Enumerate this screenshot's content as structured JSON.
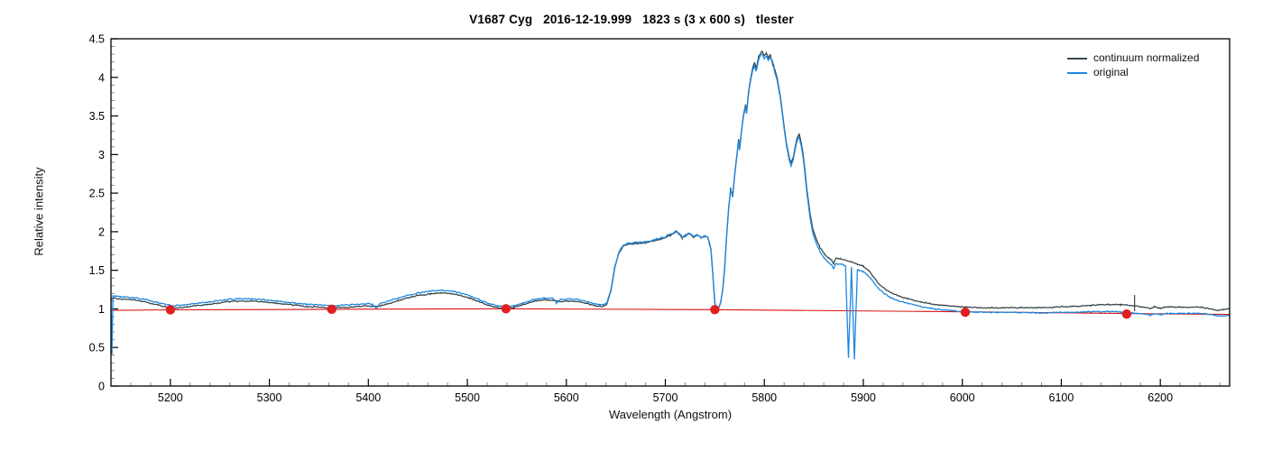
{
  "title": "V1687 Cyg   2016-12-19.999   1823 s (3 x 600 s)   tlester",
  "legend": {
    "items": [
      {
        "label": "continuum normalized",
        "color": "#37474b"
      },
      {
        "label": "original",
        "color": "#1e87e0"
      }
    ]
  },
  "colors": {
    "continuum_normalized": "#37474b",
    "original": "#1e87e0",
    "continuum_fit_line": "#dd1111",
    "continuum_fit_points": "#e02020",
    "axis": "#000000",
    "minor_tick": "#888888"
  },
  "chart_data": {
    "type": "line",
    "title": "V1687 Cyg   2016-12-19.999   1823 s (3 x 600 s)   tlester",
    "xlabel": "Wavelength (Angstrom)",
    "ylabel": "Relative intensity",
    "xlim": [
      5140,
      6270
    ],
    "ylim": [
      0,
      4.5
    ],
    "x_ticks": [
      5200,
      5300,
      5400,
      5500,
      5600,
      5700,
      5800,
      5900,
      6000,
      6100,
      6200
    ],
    "x_minor_step": 20,
    "y_ticks": [
      0,
      0.5,
      1,
      1.5,
      2,
      2.5,
      3,
      3.5,
      4,
      4.5
    ],
    "y_minor_step": 0.1,
    "grid": false,
    "legend_position": "top-right",
    "series": [
      {
        "name": "original",
        "color": "#1e87e0",
        "keypoints": [
          [
            5140,
            1.16
          ],
          [
            5141,
            0.42,
            1
          ],
          [
            5142,
            1.17
          ],
          [
            5150,
            1.16
          ],
          [
            5162,
            1.15
          ],
          [
            5175,
            1.12
          ],
          [
            5188,
            1.08
          ],
          [
            5198,
            1.05
          ],
          [
            5205,
            1.04
          ],
          [
            5214,
            1.05
          ],
          [
            5226,
            1.07
          ],
          [
            5240,
            1.09
          ],
          [
            5255,
            1.12
          ],
          [
            5268,
            1.13
          ],
          [
            5282,
            1.13
          ],
          [
            5295,
            1.12
          ],
          [
            5308,
            1.1
          ],
          [
            5322,
            1.08
          ],
          [
            5338,
            1.06
          ],
          [
            5352,
            1.05
          ],
          [
            5364,
            1.04
          ],
          [
            5376,
            1.05
          ],
          [
            5390,
            1.06
          ],
          [
            5399,
            1.07
          ],
          [
            5404,
            1.06
          ],
          [
            5408,
            1.01,
            1
          ],
          [
            5412,
            1.07
          ],
          [
            5420,
            1.1
          ],
          [
            5430,
            1.14
          ],
          [
            5441,
            1.18
          ],
          [
            5452,
            1.21
          ],
          [
            5463,
            1.23
          ],
          [
            5473,
            1.24
          ],
          [
            5483,
            1.23
          ],
          [
            5492,
            1.21
          ],
          [
            5502,
            1.17
          ],
          [
            5512,
            1.12
          ],
          [
            5522,
            1.07
          ],
          [
            5531,
            1.04
          ],
          [
            5539,
            1.02
          ],
          [
            5547,
            1.04
          ],
          [
            5557,
            1.08
          ],
          [
            5567,
            1.12
          ],
          [
            5577,
            1.14
          ],
          [
            5586,
            1.14
          ],
          [
            5590,
            1.08,
            1
          ],
          [
            5594,
            1.12
          ],
          [
            5603,
            1.13
          ],
          [
            5613,
            1.12
          ],
          [
            5622,
            1.09
          ],
          [
            5630,
            1.06
          ],
          [
            5637,
            1.05
          ],
          [
            5641,
            1.08
          ],
          [
            5645,
            1.25
          ],
          [
            5649,
            1.55
          ],
          [
            5653,
            1.74
          ],
          [
            5657,
            1.82
          ],
          [
            5662,
            1.85
          ],
          [
            5670,
            1.86
          ],
          [
            5680,
            1.87
          ],
          [
            5690,
            1.9
          ],
          [
            5699,
            1.93
          ],
          [
            5706,
            1.97
          ],
          [
            5711,
            2.01
          ],
          [
            5714,
            1.98
          ],
          [
            5717,
            1.93
          ],
          [
            5721,
            1.96
          ],
          [
            5725,
            1.98
          ],
          [
            5728,
            1.94
          ],
          [
            5732,
            1.96
          ],
          [
            5736,
            1.93
          ],
          [
            5740,
            1.95
          ],
          [
            5743,
            1.93
          ],
          [
            5746,
            1.78
          ],
          [
            5748,
            1.45
          ],
          [
            5750,
            1.08
          ],
          [
            5752,
            0.99
          ],
          [
            5754,
            1.02
          ],
          [
            5756,
            1.09
          ],
          [
            5758,
            1.25
          ],
          [
            5760,
            1.55
          ],
          [
            5762,
            1.95
          ],
          [
            5764,
            2.3
          ],
          [
            5766,
            2.55
          ],
          [
            5768,
            2.45
          ],
          [
            5770,
            2.72
          ],
          [
            5772,
            2.95
          ],
          [
            5774,
            3.18
          ],
          [
            5775,
            3.05
          ],
          [
            5777,
            3.3
          ],
          [
            5779,
            3.5
          ],
          [
            5781,
            3.62
          ],
          [
            5782,
            3.52
          ],
          [
            5784,
            3.78
          ],
          [
            5786,
            3.95
          ],
          [
            5788,
            4.08
          ],
          [
            5790,
            4.16
          ],
          [
            5792,
            4.08
          ],
          [
            5794,
            4.22
          ],
          [
            5796,
            4.28
          ],
          [
            5798,
            4.3
          ],
          [
            5800,
            4.24
          ],
          [
            5802,
            4.28
          ],
          [
            5804,
            4.22
          ],
          [
            5806,
            4.26
          ],
          [
            5808,
            4.18
          ],
          [
            5810,
            4.1
          ],
          [
            5813,
            3.96
          ],
          [
            5816,
            3.74
          ],
          [
            5819,
            3.44
          ],
          [
            5822,
            3.14
          ],
          [
            5825,
            2.94
          ],
          [
            5827,
            2.86
          ],
          [
            5829,
            2.92
          ],
          [
            5831,
            3.06
          ],
          [
            5833,
            3.18
          ],
          [
            5835,
            3.23
          ],
          [
            5837,
            3.13
          ],
          [
            5839,
            2.98
          ],
          [
            5841,
            2.76
          ],
          [
            5843,
            2.5
          ],
          [
            5846,
            2.2
          ],
          [
            5849,
            1.98
          ],
          [
            5853,
            1.83
          ],
          [
            5857,
            1.72
          ],
          [
            5861,
            1.65
          ],
          [
            5865,
            1.6
          ],
          [
            5868,
            1.57
          ],
          [
            5870,
            1.52
          ],
          [
            5872,
            1.59
          ],
          [
            5877,
            1.58
          ],
          [
            5882,
            1.56
          ],
          [
            5885,
            0.37,
            1
          ],
          [
            5888,
            1.54
          ],
          [
            5891,
            0.35,
            1
          ],
          [
            5894,
            1.51
          ],
          [
            5900,
            1.48
          ],
          [
            5905,
            1.43
          ],
          [
            5910,
            1.35
          ],
          [
            5915,
            1.27
          ],
          [
            5920,
            1.21
          ],
          [
            5927,
            1.15
          ],
          [
            5935,
            1.11
          ],
          [
            5945,
            1.07
          ],
          [
            5958,
            1.03
          ],
          [
            5972,
            1.0
          ],
          [
            5986,
            0.98
          ],
          [
            6000,
            0.966
          ],
          [
            6015,
            0.958
          ],
          [
            6035,
            0.954
          ],
          [
            6060,
            0.952
          ],
          [
            6085,
            0.95
          ],
          [
            6110,
            0.956
          ],
          [
            6130,
            0.962
          ],
          [
            6148,
            0.966
          ],
          [
            6160,
            0.956
          ],
          [
            6172,
            0.948
          ],
          [
            6186,
            0.93
          ],
          [
            6190,
            0.916
          ],
          [
            6194,
            0.94
          ],
          [
            6200,
            0.922
          ],
          [
            6205,
            0.94
          ],
          [
            6220,
            0.942
          ],
          [
            6240,
            0.94
          ],
          [
            6252,
            0.926
          ],
          [
            6258,
            0.912
          ],
          [
            6264,
            0.91
          ],
          [
            6270,
            0.915
          ]
        ]
      },
      {
        "name": "continuum normalized",
        "color": "#37474b",
        "derived_from": "original",
        "offset_keypoints": [
          [
            5140,
            -0.03
          ],
          [
            5250,
            -0.03
          ],
          [
            5350,
            -0.028
          ],
          [
            5420,
            -0.032
          ],
          [
            5470,
            -0.035
          ],
          [
            5540,
            -0.022
          ],
          [
            5600,
            -0.028
          ],
          [
            5640,
            -0.02
          ],
          [
            5665,
            -0.013
          ],
          [
            5700,
            -0.012
          ],
          [
            5735,
            -0.008
          ],
          [
            5752,
            -0.003
          ],
          [
            5770,
            0.012
          ],
          [
            5790,
            0.03
          ],
          [
            5800,
            0.04
          ],
          [
            5815,
            0.028
          ],
          [
            5830,
            0.028
          ],
          [
            5845,
            0.05
          ],
          [
            5862,
            0.06
          ],
          [
            5880,
            0.068
          ],
          [
            5900,
            0.07
          ],
          [
            5920,
            0.065
          ],
          [
            5948,
            0.06
          ],
          [
            5975,
            0.058
          ],
          [
            6005,
            0.058
          ],
          [
            6035,
            0.06
          ],
          [
            6065,
            0.065
          ],
          [
            6095,
            0.07
          ],
          [
            6120,
            0.08
          ],
          [
            6148,
            0.092
          ],
          [
            6166,
            0.1
          ],
          [
            6182,
            0.09
          ],
          [
            6200,
            0.086
          ],
          [
            6225,
            0.08
          ],
          [
            6246,
            0.08
          ],
          [
            6257,
            0.062
          ],
          [
            6265,
            0.085
          ],
          [
            6270,
            0.09
          ]
        ],
        "artifact_spike": {
          "x": 6174,
          "v_from": 0.97,
          "v_to": 1.18
        }
      },
      {
        "name": "continuum fit",
        "color": "#dd1111",
        "keypoints": [
          [
            5140,
            0.981
          ],
          [
            5200,
            0.988
          ],
          [
            5363,
            0.995
          ],
          [
            5539,
            1.002
          ],
          [
            5750,
            0.99
          ],
          [
            6003,
            0.962
          ],
          [
            6166,
            0.94
          ],
          [
            6270,
            0.928
          ]
        ]
      }
    ],
    "continuum_points": {
      "color": "#e02020",
      "points": [
        [
          5200,
          0.988
        ],
        [
          5363,
          0.995
        ],
        [
          5539,
          1.002
        ],
        [
          5750,
          0.99
        ],
        [
          6003,
          0.957
        ],
        [
          6166,
          0.932
        ]
      ]
    }
  }
}
